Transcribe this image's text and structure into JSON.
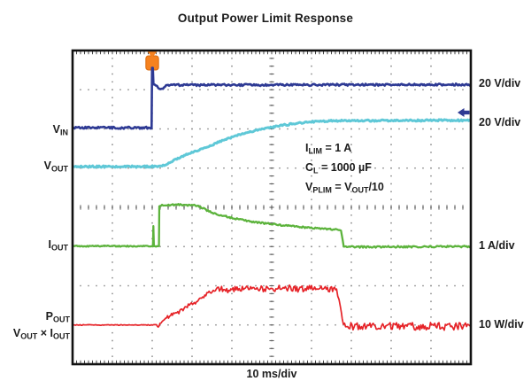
{
  "title": "Output Power Limit Response",
  "x_axis_label": "10 ms/div",
  "left_labels": {
    "vin": {
      "base": "V",
      "sub": "IN"
    },
    "vout": {
      "base": "V",
      "sub": "OUT"
    },
    "iout": {
      "base": "I",
      "sub": "OUT"
    },
    "pout": {
      "base": "P",
      "sub": "OUT"
    },
    "pout_formula": {
      "base": "V",
      "sub": "OUT",
      "mid": " × ",
      "base2": "I",
      "sub2": "OUT"
    }
  },
  "right_labels": [
    {
      "text": "20 V/div"
    },
    {
      "text": "20 V/div"
    },
    {
      "text": "1 A/div"
    },
    {
      "text": "10 W/div"
    }
  ],
  "annotations": {
    "ilim": {
      "base": "I",
      "sub": "LIM",
      "rest": " = 1 A"
    },
    "cl": {
      "base": "C",
      "sub": "L",
      "rest": " = 1000 µF"
    },
    "vplim": {
      "base": "V",
      "sub": "PLIM",
      "mid": " = V",
      "sub2": "OUT",
      "rest": "/10"
    }
  },
  "colors": {
    "vin": "#2e3a94",
    "vout": "#5fc8d7",
    "iout": "#5cb33c",
    "pout": "#e62328",
    "trigger": "#f6821f",
    "trigger_edge": "#d96b10",
    "grid_dot": "#8f8f8f",
    "grid_tick": "#555555",
    "border": "#111111",
    "text": "#1c1c1c"
  },
  "chart_data": {
    "type": "line",
    "title": "Output Power Limit Response",
    "x_per_div": "10 ms/div",
    "x_range_ms": [
      0,
      100
    ],
    "grid": {
      "x_divisions": 10,
      "y_divisions": 8,
      "style": "dotted graticule with center-line ticks"
    },
    "trigger": {
      "t_ms": 20,
      "marker": "orange T flag at top"
    },
    "annotations_text": [
      "ILIM = 1 A",
      "CL = 1000 µF",
      "VPLIM = VOUT/10"
    ],
    "note": "points are [time_ms, vertical_position_in_divisions_from_top, noise_halfband_px]",
    "series": [
      {
        "name": "POUT = VOUT × IOUT",
        "scale": "10 W/div",
        "color_key": "pout",
        "width": 1.7,
        "seed": 17,
        "description": "flat baseline at 7.0 div; noisy ramp from t≈21.5 ms up ~0.9 div (≈9 W) reaching noisy plateau at 6.08 div by t≈37 ms; drops back at t≈67 ms; baseline noisy afterwards",
        "points": [
          [
            0,
            7.0,
            0.4
          ],
          [
            21.1,
            7.0,
            0.4
          ],
          [
            21.5,
            7.05,
            0.5
          ],
          [
            22.2,
            6.93,
            1.4
          ],
          [
            23.6,
            6.82,
            1.8
          ],
          [
            25.1,
            6.73,
            1.8
          ],
          [
            26.7,
            6.68,
            1.8
          ],
          [
            28,
            6.57,
            2.0
          ],
          [
            29.6,
            6.48,
            2.0
          ],
          [
            31.1,
            6.41,
            2.0
          ],
          [
            32.4,
            6.3,
            2.0
          ],
          [
            34,
            6.19,
            2.0
          ],
          [
            35.6,
            6.12,
            2.2
          ],
          [
            36.9,
            6.09,
            3.4
          ],
          [
            40,
            6.1,
            3.6
          ],
          [
            45,
            6.08,
            3.8
          ],
          [
            50,
            6.06,
            3.8
          ],
          [
            55,
            6.07,
            3.8
          ],
          [
            60,
            6.08,
            3.8
          ],
          [
            64,
            6.07,
            3.8
          ],
          [
            66.3,
            6.09,
            3.2
          ],
          [
            66.9,
            6.35,
            1.6
          ],
          [
            67.3,
            6.56,
            1.2
          ],
          [
            67.7,
            6.88,
            1.8
          ],
          [
            68.3,
            7.03,
            4.2
          ],
          [
            72,
            7.04,
            4.4
          ],
          [
            100,
            7.03,
            4.4
          ]
        ]
      },
      {
        "name": "IOUT",
        "scale": "1 A/div",
        "color_key": "iout",
        "width": 2.3,
        "seed": 11,
        "description": "baseline 5.0 div; brief spike at trigger t=20 ms; steps up ~1 div (≈1 A current limit) at t≈21.8 ms; slow decay from 3.95 to 4.57 div; steps back to baseline at t≈68 ms",
        "points": [
          [
            0,
            4.99,
            0.6
          ],
          [
            20.18,
            4.99,
            0.6
          ],
          [
            20.28,
            4.48,
            0
          ],
          [
            20.42,
            4.99,
            0.5
          ],
          [
            21.7,
            4.99,
            0.6
          ],
          [
            21.78,
            3.97,
            0
          ],
          [
            22.2,
            3.95,
            0.8
          ],
          [
            26,
            3.93,
            0.9
          ],
          [
            30.5,
            3.95,
            0.9
          ],
          [
            31.8,
            3.98,
            0.9
          ],
          [
            35.1,
            4.14,
            0.9
          ],
          [
            39.6,
            4.26,
            0.9
          ],
          [
            44,
            4.35,
            0.9
          ],
          [
            48.4,
            4.41,
            0.9
          ],
          [
            52.9,
            4.46,
            0.9
          ],
          [
            57.3,
            4.5,
            0.9
          ],
          [
            62,
            4.54,
            0.9
          ],
          [
            66.8,
            4.57,
            0.8
          ],
          [
            67.4,
            4.6,
            0.4
          ],
          [
            68.1,
            5.0,
            0.3
          ],
          [
            70,
            5.01,
            1.0
          ],
          [
            100,
            5.0,
            1.0
          ]
        ]
      },
      {
        "name": "VOUT",
        "scale": "20 V/div",
        "color_key": "vout",
        "width": 3.0,
        "seed": 7,
        "description": "baseline 2.96 div; soft-start ramp from t≈22 ms rising ~1.17 div (≈23 V) with exponential rounding, settling at 1.79 div by t≈67 ms",
        "points": [
          [
            0,
            2.96,
            1.0
          ],
          [
            21.9,
            2.96,
            1.0
          ],
          [
            24.4,
            2.86,
            0.9
          ],
          [
            26.7,
            2.74,
            0.9
          ],
          [
            30.2,
            2.59,
            0.9
          ],
          [
            34,
            2.45,
            0.9
          ],
          [
            37.8,
            2.29,
            0.9
          ],
          [
            41.3,
            2.16,
            0.9
          ],
          [
            45.1,
            2.06,
            0.9
          ],
          [
            48.9,
            1.98,
            0.9
          ],
          [
            52.4,
            1.91,
            0.9
          ],
          [
            56.2,
            1.86,
            0.9
          ],
          [
            60,
            1.82,
            0.9
          ],
          [
            63.6,
            1.8,
            0.9
          ],
          [
            67.3,
            1.79,
            0.9
          ],
          [
            100,
            1.78,
            1.0
          ]
        ]
      },
      {
        "name": "VIN",
        "scale": "20 V/div",
        "color_key": "vin",
        "width": 2.6,
        "seed": 3,
        "description": "baseline 1.97 div; steps up ~1.1 div (≈22 V) at trigger t=20 ms with spike to top and small settling dip, then flat at 0.87 div",
        "points": [
          [
            0,
            1.97,
            1.2
          ],
          [
            19.85,
            1.97,
            1.2
          ],
          [
            19.95,
            0.44,
            0
          ],
          [
            20.15,
            0.44,
            0
          ],
          [
            20.3,
            0.86,
            0.3
          ],
          [
            21.2,
            0.9,
            0.5
          ],
          [
            21.7,
            0.98,
            0.4
          ],
          [
            22.7,
            0.97,
            0.4
          ],
          [
            23.5,
            0.89,
            0.5
          ],
          [
            25,
            0.88,
            1.1
          ],
          [
            100,
            0.87,
            1.1
          ]
        ]
      }
    ]
  }
}
